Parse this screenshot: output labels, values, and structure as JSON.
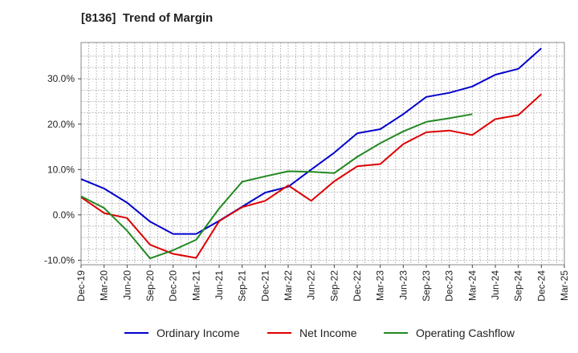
{
  "chart_data": {
    "type": "line",
    "title": "[8136]  Trend of Margin",
    "xlabel": "",
    "ylabel": "",
    "x_ticks": [
      "Dec-19",
      "Mar-20",
      "Jun-20",
      "Sep-20",
      "Dec-20",
      "Mar-21",
      "Jun-21",
      "Sep-21",
      "Dec-21",
      "Mar-22",
      "Jun-22",
      "Sep-22",
      "Dec-22",
      "Mar-23",
      "Jun-23",
      "Sep-23",
      "Dec-23",
      "Mar-24",
      "Jun-24",
      "Sep-24",
      "Dec-24",
      "Mar-25"
    ],
    "y_ticks": [
      -10,
      0,
      10,
      20,
      30
    ],
    "y_tick_labels": [
      "-10.0%",
      "0.0%",
      "10.0%",
      "20.0%",
      "30.0%"
    ],
    "ylim": [
      -11,
      38
    ],
    "grid": true,
    "legend_position": "bottom",
    "series": [
      {
        "name": "Ordinary Income",
        "color": "#0000cc",
        "values": [
          7.9,
          5.8,
          2.7,
          -1.5,
          -4.2,
          -4.2,
          -1.3,
          1.8,
          4.9,
          6.2,
          10.0,
          13.7,
          18.0,
          18.9,
          22.2,
          26.0,
          26.9,
          28.3,
          30.9,
          32.2,
          36.7,
          null
        ]
      },
      {
        "name": "Net Income",
        "color": "#dd0000",
        "values": [
          3.9,
          0.4,
          -0.7,
          -6.6,
          -8.6,
          -9.5,
          -1.4,
          1.7,
          3.1,
          6.5,
          3.1,
          7.4,
          10.7,
          11.2,
          15.6,
          18.2,
          18.6,
          17.6,
          21.1,
          22.0,
          26.6,
          null
        ]
      },
      {
        "name": "Operating Cashflow",
        "color": "#228822",
        "values": [
          4.1,
          1.5,
          -3.5,
          -9.6,
          -7.8,
          -5.5,
          1.4,
          7.3,
          8.5,
          9.6,
          9.5,
          9.2,
          12.8,
          15.8,
          18.4,
          20.5,
          21.3,
          22.2,
          null,
          null,
          null,
          null
        ]
      }
    ]
  }
}
